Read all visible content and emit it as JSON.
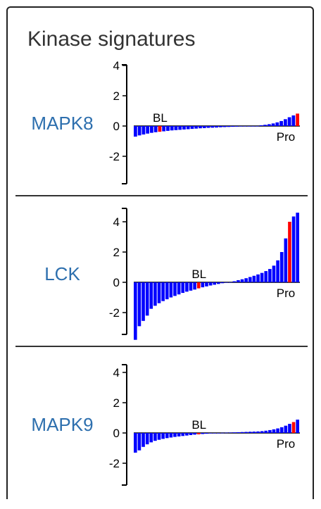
{
  "title": "Kinase signatures",
  "chart_data": [
    {
      "type": "bar",
      "name": "MAPK8",
      "ylim": [
        -3.8,
        4.4
      ],
      "yticks": [
        4,
        2,
        0,
        -2
      ],
      "left_label": "BL",
      "right_label": "Pro",
      "bar_color": "#0000ff",
      "highlight_color": "#ff0000",
      "highlight_index": [
        6,
        40
      ],
      "values": [
        -0.7,
        -0.62,
        -0.56,
        -0.5,
        -0.45,
        -0.41,
        -0.38,
        -0.35,
        -0.32,
        -0.29,
        -0.27,
        -0.25,
        -0.23,
        -0.21,
        -0.19,
        -0.17,
        -0.15,
        -0.14,
        -0.12,
        -0.11,
        -0.1,
        -0.08,
        -0.07,
        -0.06,
        -0.05,
        -0.04,
        -0.03,
        -0.02,
        -0.01,
        0,
        0,
        0.05,
        0.08,
        0.12,
        0.17,
        0.24,
        0.33,
        0.45,
        0.58,
        0.7,
        0.82
      ]
    },
    {
      "type": "bar",
      "name": "LCK",
      "ylim": [
        -3.8,
        4.6
      ],
      "yticks": [
        4,
        2,
        0,
        -2
      ],
      "left_label": "BL",
      "right_label": "Pro",
      "bar_color": "#0000ff",
      "highlight_color": "#ff0000",
      "highlight_index": [
        16,
        39
      ],
      "values": [
        -3.8,
        -2.9,
        -2.55,
        -2.2,
        -1.75,
        -1.55,
        -1.38,
        -1.24,
        -1.12,
        -1.0,
        -0.9,
        -0.8,
        -0.7,
        -0.62,
        -0.55,
        -0.48,
        -0.4,
        -0.33,
        -0.27,
        -0.21,
        -0.16,
        -0.11,
        -0.06,
        -0.02,
        0,
        0.07,
        0.14,
        0.2,
        0.27,
        0.35,
        0.43,
        0.52,
        0.62,
        0.74,
        0.88,
        1.1,
        1.45,
        2.0,
        2.9,
        4.0,
        4.35,
        4.6
      ]
    },
    {
      "type": "bar",
      "name": "MAPK9",
      "ylim": [
        -3.8,
        4.4
      ],
      "yticks": [
        4,
        2,
        0,
        -2
      ],
      "left_label": "BL",
      "right_label": "Pro",
      "bar_color": "#0000ff",
      "highlight_color": "#ff0000",
      "highlight_index": [
        16,
        40
      ],
      "values": [
        -1.3,
        -1.15,
        -0.92,
        -0.75,
        -0.62,
        -0.52,
        -0.45,
        -0.39,
        -0.34,
        -0.3,
        -0.26,
        -0.23,
        -0.2,
        -0.17,
        -0.14,
        -0.11,
        -0.09,
        -0.07,
        -0.05,
        -0.03,
        -0.01,
        0,
        0.01,
        0.02,
        0.03,
        0.04,
        0.05,
        0.06,
        0.07,
        0.08,
        0.09,
        0.1,
        0.12,
        0.15,
        0.19,
        0.24,
        0.3,
        0.38,
        0.48,
        0.6,
        0.72,
        0.88
      ]
    }
  ]
}
